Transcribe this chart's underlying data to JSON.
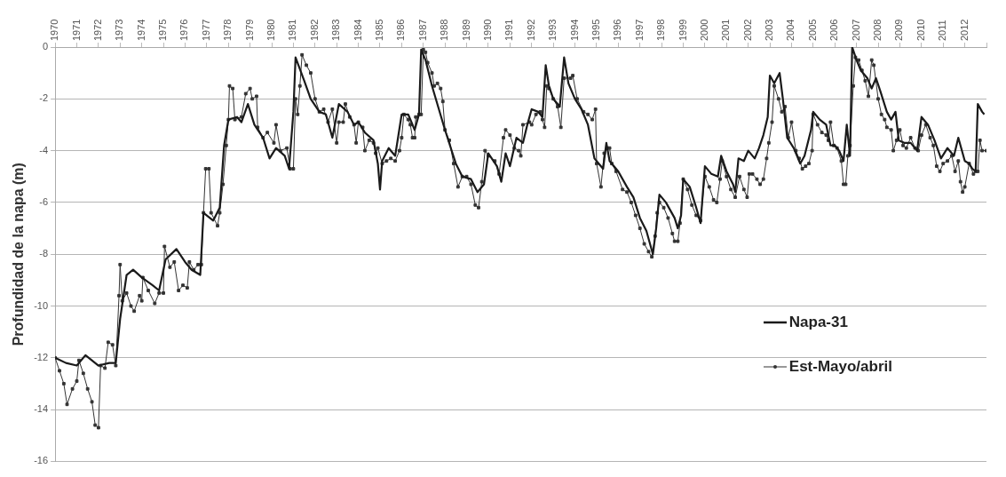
{
  "chart_data": {
    "type": "line",
    "ylabel": "Profundidad de la napa (m)",
    "xlim": [
      1970,
      2013
    ],
    "xticks": [
      1970,
      1971,
      1972,
      1973,
      1974,
      1975,
      1976,
      1977,
      1978,
      1979,
      1980,
      1981,
      1982,
      1983,
      1984,
      1985,
      1986,
      1987,
      1988,
      1989,
      1990,
      1991,
      1992,
      1993,
      1994,
      1995,
      1996,
      1997,
      1998,
      1999,
      2000,
      2001,
      2002,
      2003,
      2004,
      2005,
      2006,
      2007,
      2008,
      2009,
      2010,
      2011,
      2012,
      {
        "value": 2013,
        "label": null
      }
    ],
    "ylim": [
      -16,
      0
    ],
    "yticks": [
      -16,
      -14,
      -12,
      -10,
      -8,
      -6,
      -4,
      -2,
      0
    ],
    "grid": "y",
    "legend": "right",
    "line_style": "solid",
    "series": [
      {
        "name": "Napa-31",
        "color": "#1a1a1a",
        "marker": "none",
        "x": [
          1970,
          1970.5,
          1971,
          1971.4,
          1972,
          1972.5,
          1972.8,
          1973,
          1973.3,
          1973.6,
          1974,
          1974.5,
          1974.8,
          1975.1,
          1975.6,
          1976,
          1976.3,
          1976.7,
          1976.85,
          1977.3,
          1977.6,
          1977.8,
          1978,
          1978.4,
          1978.6,
          1978.9,
          1979.2,
          1979.6,
          1979.9,
          1980.2,
          1980.6,
          1980.8,
          1981,
          1981.1,
          1981.5,
          1981.8,
          1982.2,
          1982.5,
          1982.8,
          1983.1,
          1983.5,
          1983.8,
          1984,
          1984.3,
          1984.7,
          1984.9,
          1985,
          1985.1,
          1985.4,
          1985.7,
          1986,
          1986.3,
          1986.6,
          1986.8,
          1986.9,
          1987.1,
          1987.4,
          1988,
          1988.5,
          1988.8,
          1989.2,
          1989.5,
          1989.8,
          1990,
          1990.4,
          1990.6,
          1990.8,
          1991,
          1991.3,
          1991.6,
          1991.8,
          1992,
          1992.3,
          1992.5,
          1992.65,
          1992.8,
          1993,
          1993.3,
          1993.5,
          1993.7,
          1994,
          1994.3,
          1994.6,
          1994.9,
          1995.1,
          1995.3,
          1995.45,
          1995.6,
          1996,
          1996.4,
          1996.7,
          1997,
          1997.3,
          1997.5,
          1997.6,
          1997.75,
          1997.9,
          1998.2,
          1998.6,
          1998.75,
          1998.9,
          1999,
          1999.3,
          1999.6,
          1999.8,
          2000,
          2000.3,
          2000.6,
          2000.75,
          2001,
          2001.3,
          2001.4,
          2001.55,
          2001.8,
          2002,
          2002.3,
          2002.5,
          2002.7,
          2002.9,
          2003,
          2003.2,
          2003.45,
          2003.6,
          2003.8,
          2004.1,
          2004.4,
          2004.6,
          2004.9,
          2005,
          2005.3,
          2005.6,
          2005.8,
          2006,
          2006.2,
          2006.4,
          2006.55,
          2006.7,
          2006.8,
          2007,
          2007.2,
          2007.5,
          2007.7,
          2007.9,
          2008.1,
          2008.4,
          2008.6,
          2008.8,
          2008.95,
          2009.2,
          2009.5,
          2009.8,
          2010,
          2010.3,
          2010.6,
          2010.9,
          2011.2,
          2011.5,
          2011.7,
          2012,
          2012.2,
          2012.35,
          2012.5,
          2012.6,
          2012.8,
          2012.9
        ],
        "values": [
          -12.0,
          -12.2,
          -12.3,
          -11.9,
          -12.3,
          -12.2,
          -12.2,
          -10.5,
          -8.8,
          -8.6,
          -8.9,
          -9.2,
          -9.4,
          -8.2,
          -7.8,
          -8.3,
          -8.6,
          -8.8,
          -6.4,
          -6.7,
          -6.2,
          -3.8,
          -2.8,
          -2.7,
          -2.9,
          -2.2,
          -3.0,
          -3.5,
          -4.3,
          -3.9,
          -4.2,
          -4.7,
          -2.5,
          -0.4,
          -1.3,
          -2.0,
          -2.5,
          -2.6,
          -3.5,
          -2.2,
          -2.5,
          -3.0,
          -2.9,
          -3.3,
          -3.6,
          -4.5,
          -5.5,
          -4.4,
          -3.9,
          -4.2,
          -2.6,
          -2.6,
          -3.2,
          -2.6,
          -0.1,
          -0.5,
          -1.5,
          -3.2,
          -4.5,
          -5.0,
          -5.1,
          -5.6,
          -5.3,
          -4.1,
          -4.6,
          -5.2,
          -4.1,
          -4.6,
          -3.5,
          -3.7,
          -3.0,
          -2.4,
          -2.5,
          -2.7,
          -0.7,
          -1.5,
          -2.0,
          -2.3,
          -0.4,
          -1.4,
          -2.0,
          -2.4,
          -3.0,
          -4.3,
          -4.5,
          -4.7,
          -3.7,
          -4.4,
          -4.8,
          -5.4,
          -5.8,
          -6.6,
          -7.1,
          -7.7,
          -8.0,
          -7.0,
          -5.7,
          -6.0,
          -6.6,
          -7.0,
          -6.5,
          -5.1,
          -5.4,
          -6.2,
          -6.8,
          -4.6,
          -4.9,
          -5.0,
          -4.2,
          -4.8,
          -5.3,
          -5.6,
          -4.3,
          -4.4,
          -4.0,
          -4.3,
          -3.9,
          -3.4,
          -2.7,
          -1.1,
          -1.4,
          -1.0,
          -2.0,
          -3.5,
          -3.9,
          -4.5,
          -4.2,
          -3.2,
          -2.5,
          -2.8,
          -3.0,
          -3.8,
          -3.8,
          -4.0,
          -4.4,
          -3.0,
          -4.2,
          0.0,
          -0.5,
          -0.9,
          -1.2,
          -1.6,
          -1.2,
          -1.7,
          -2.5,
          -2.8,
          -2.5,
          -3.6,
          -3.7,
          -3.7,
          -4.0,
          -2.7,
          -3.0,
          -3.6,
          -4.3,
          -3.9,
          -4.2,
          -3.5,
          -4.4,
          -4.5,
          -4.7,
          -4.8,
          -2.2,
          -2.5,
          -2.6
        ]
      },
      {
        "name": "Est-Mayo/abril",
        "color": "#333333",
        "marker": "square",
        "x": [
          1970,
          1970.2,
          1970.4,
          1970.55,
          1970.8,
          1971,
          1971.1,
          1971.3,
          1971.5,
          1971.7,
          1971.85,
          1972,
          1972.1,
          1972.3,
          1972.45,
          1972.65,
          1972.8,
          1972.95,
          1973,
          1973.1,
          1973.3,
          1973.5,
          1973.65,
          1973.9,
          1974,
          1974.05,
          1974.3,
          1974.6,
          1974.8,
          1975,
          1975.05,
          1975.3,
          1975.5,
          1975.7,
          1975.9,
          1976.1,
          1976.2,
          1976.4,
          1976.6,
          1976.75,
          1976.85,
          1976.95,
          1977.1,
          1977.2,
          1977.5,
          1977.6,
          1977.75,
          1977.9,
          1978,
          1978.05,
          1978.2,
          1978.3,
          1978.6,
          1978.8,
          1979,
          1979.1,
          1979.3,
          1979.35,
          1979.6,
          1979.8,
          1980.1,
          1980.2,
          1980.4,
          1980.7,
          1980.85,
          1981,
          1981.1,
          1981.2,
          1981.3,
          1981.4,
          1981.6,
          1981.8,
          1982,
          1982.2,
          1982.4,
          1982.6,
          1982.8,
          1983,
          1983.1,
          1983.3,
          1983.4,
          1983.6,
          1983.8,
          1983.9,
          1984,
          1984.2,
          1984.3,
          1984.5,
          1984.7,
          1984.8,
          1984.9,
          1985.1,
          1985.3,
          1985.5,
          1985.7,
          1985.9,
          1986,
          1986.1,
          1986.3,
          1986.4,
          1986.5,
          1986.6,
          1986.65,
          1986.8,
          1986.9,
          1987,
          1987.1,
          1987.2,
          1987.4,
          1987.5,
          1987.65,
          1987.8,
          1987.9,
          1988,
          1988.2,
          1988.4,
          1988.6,
          1988.8,
          1989,
          1989.2,
          1989.4,
          1989.55,
          1989.7,
          1989.85,
          1990,
          1990.3,
          1990.5,
          1990.7,
          1990.8,
          1991,
          1991.2,
          1991.4,
          1991.5,
          1991.6,
          1991.9,
          1992,
          1992.2,
          1992.4,
          1992.5,
          1992.6,
          1992.7,
          1992.8,
          1993,
          1993.2,
          1993.35,
          1993.5,
          1993.8,
          1993.9,
          1994.1,
          1994.4,
          1994.6,
          1994.8,
          1994.95,
          1995,
          1995.2,
          1995.35,
          1995.5,
          1995.6,
          1995.7,
          1995.9,
          1996.2,
          1996.4,
          1996.6,
          1996.8,
          1997,
          1997.2,
          1997.4,
          1997.55,
          1997.7,
          1997.8,
          1997.9,
          1998.1,
          1998.3,
          1998.5,
          1998.6,
          1998.75,
          1998.85,
          1999,
          1999.2,
          1999.4,
          1999.6,
          1999.8,
          2000,
          2000.2,
          2000.4,
          2000.55,
          2000.7,
          2000.8,
          2001,
          2001.2,
          2001.4,
          2001.6,
          2001.8,
          2001.95,
          2002.05,
          2002.2,
          2002.4,
          2002.55,
          2002.7,
          2002.85,
          2002.95,
          2003.1,
          2003.2,
          2003.4,
          2003.55,
          2003.7,
          2003.85,
          2004,
          2004.2,
          2004.35,
          2004.5,
          2004.65,
          2004.8,
          2004.95,
          2005,
          2005.2,
          2005.4,
          2005.6,
          2005.7,
          2005.8,
          2005.95,
          2006.1,
          2006.3,
          2006.4,
          2006.5,
          2006.6,
          2006.7,
          2006.85,
          2006.95,
          2007.1,
          2007.25,
          2007.4,
          2007.55,
          2007.7,
          2007.8,
          2008,
          2008.15,
          2008.3,
          2008.4,
          2008.6,
          2008.7,
          2008.85,
          2009,
          2009.15,
          2009.3,
          2009.5,
          2009.7,
          2009.85,
          2010,
          2010.2,
          2010.4,
          2010.55,
          2010.7,
          2010.85,
          2011,
          2011.2,
          2011.4,
          2011.55,
          2011.7,
          2011.8,
          2011.9,
          2012,
          2012.2,
          2012.4,
          2012.5,
          2012.6,
          2012.7,
          2012.8,
          2013
        ],
        "values": [
          -12.0,
          -12.5,
          -13.0,
          -13.8,
          -13.2,
          -12.9,
          -12.1,
          -12.6,
          -13.2,
          -13.7,
          -14.6,
          -14.7,
          -12.3,
          -12.4,
          -11.4,
          -11.5,
          -12.3,
          -9.6,
          -8.4,
          -9.8,
          -9.5,
          -10.0,
          -10.2,
          -9.6,
          -9.8,
          -8.9,
          -9.4,
          -9.9,
          -9.5,
          -9.5,
          -7.7,
          -8.5,
          -8.3,
          -9.4,
          -9.2,
          -9.3,
          -8.3,
          -8.6,
          -8.4,
          -8.4,
          -6.4,
          -4.7,
          -4.7,
          -6.4,
          -6.9,
          -6.4,
          -5.3,
          -3.8,
          -2.8,
          -1.5,
          -1.6,
          -2.8,
          -2.7,
          -1.8,
          -1.6,
          -2.0,
          -1.9,
          -3.1,
          -3.5,
          -3.3,
          -3.7,
          -3.0,
          -4.0,
          -3.9,
          -4.7,
          -4.7,
          -2.0,
          -2.6,
          -1.5,
          -0.3,
          -0.7,
          -1.0,
          -2.0,
          -2.5,
          -2.4,
          -2.9,
          -2.4,
          -3.7,
          -2.9,
          -2.9,
          -2.2,
          -2.7,
          -3.0,
          -3.7,
          -2.9,
          -3.1,
          -4.0,
          -3.6,
          -3.7,
          -4.1,
          -3.9,
          -4.5,
          -4.4,
          -4.3,
          -4.4,
          -4.0,
          -3.5,
          -2.6,
          -2.8,
          -3.0,
          -3.5,
          -3.5,
          -2.7,
          -2.6,
          -2.6,
          -0.1,
          -0.2,
          -0.6,
          -1.0,
          -1.5,
          -1.4,
          -1.6,
          -2.1,
          -3.2,
          -3.6,
          -4.5,
          -5.4,
          -5.0,
          -5.0,
          -5.3,
          -6.1,
          -6.2,
          -5.2,
          -4.0,
          -4.2,
          -4.4,
          -4.9,
          -3.5,
          -3.2,
          -3.4,
          -3.9,
          -4.0,
          -4.2,
          -3.0,
          -2.9,
          -3.0,
          -2.6,
          -2.5,
          -2.8,
          -3.1,
          -1.5,
          -1.6,
          -2.0,
          -2.3,
          -3.1,
          -1.2,
          -1.2,
          -1.1,
          -2.0,
          -2.5,
          -2.6,
          -2.8,
          -2.4,
          -4.5,
          -5.4,
          -4.1,
          -3.9,
          -3.9,
          -4.5,
          -4.8,
          -5.5,
          -5.6,
          -6.0,
          -6.5,
          -7.0,
          -7.6,
          -7.9,
          -8.1,
          -7.3,
          -6.4,
          -6.0,
          -6.2,
          -6.6,
          -7.2,
          -7.5,
          -7.5,
          -6.8,
          -5.1,
          -5.5,
          -6.1,
          -6.5,
          -6.7,
          -5.0,
          -5.4,
          -5.9,
          -6.0,
          -5.1,
          -4.4,
          -5.0,
          -5.5,
          -5.8,
          -5.0,
          -5.5,
          -5.8,
          -4.9,
          -4.9,
          -5.1,
          -5.3,
          -5.1,
          -4.3,
          -3.7,
          -2.9,
          -1.5,
          -2.0,
          -2.5,
          -2.3,
          -3.5,
          -2.9,
          -4.0,
          -4.3,
          -4.7,
          -4.6,
          -4.5,
          -4.0,
          -2.6,
          -3.0,
          -3.3,
          -3.4,
          -3.6,
          -2.9,
          -3.8,
          -3.9,
          -4.4,
          -5.3,
          -5.3,
          -4.2,
          -3.8,
          -1.5,
          -0.4,
          -0.5,
          -0.9,
          -1.3,
          -1.9,
          -0.5,
          -0.7,
          -2.0,
          -2.6,
          -2.8,
          -3.1,
          -3.2,
          -4.0,
          -3.6,
          -3.2,
          -3.8,
          -3.9,
          -3.5,
          -3.9,
          -4.0,
          -3.4,
          -3.0,
          -3.5,
          -3.8,
          -4.6,
          -4.8,
          -4.5,
          -4.4,
          -4.2,
          -4.8,
          -4.4,
          -5.2,
          -5.6,
          -5.4,
          -4.5,
          -4.9,
          -4.8,
          -4.8,
          -3.6,
          -4.0,
          -4.0
        ]
      }
    ]
  }
}
